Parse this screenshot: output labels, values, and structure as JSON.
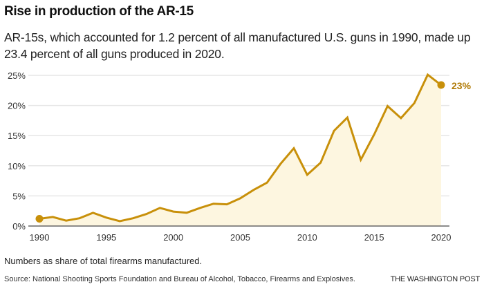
{
  "header": {
    "title": "Rise in production of the AR-15",
    "subtitle": "AR-15s, which accounted for 1.2 percent of all manufactured U.S. guns in 1990, made up 23.4 percent of all guns produced in 2020."
  },
  "footer": {
    "note": "Numbers as share of total firearms manufactured.",
    "source": "Source: National Shooting Sports Foundation and Bureau of Alcohol, Tobacco, Firearms and Explosives.",
    "credit": "THE WASHINGTON POST"
  },
  "chart_data": {
    "type": "area",
    "title": "Rise in production of the AR-15",
    "xlabel": "",
    "ylabel": "",
    "x": [
      1990,
      1991,
      1992,
      1993,
      1994,
      1995,
      1996,
      1997,
      1998,
      1999,
      2000,
      2001,
      2002,
      2003,
      2004,
      2005,
      2006,
      2007,
      2008,
      2009,
      2010,
      2011,
      2012,
      2013,
      2014,
      2015,
      2016,
      2017,
      2018,
      2019,
      2020
    ],
    "series": [
      {
        "name": "AR-15 share of total firearms manufactured (%)",
        "values": [
          1.2,
          1.5,
          0.9,
          1.3,
          2.2,
          1.4,
          0.8,
          1.3,
          2.0,
          3.0,
          2.4,
          2.2,
          3.0,
          3.7,
          3.6,
          4.6,
          6.0,
          7.2,
          10.3,
          12.9,
          8.5,
          10.5,
          15.8,
          18.0,
          11.0,
          15.2,
          19.9,
          17.9,
          20.4,
          25.1,
          23.4
        ]
      }
    ],
    "xlim": [
      1990,
      2020
    ],
    "ylim": [
      0,
      25
    ],
    "xticks": [
      1990,
      1995,
      2000,
      2005,
      2010,
      2015,
      2020
    ],
    "xtick_labels": [
      "1990",
      "1995",
      "2000",
      "2005",
      "2010",
      "2015",
      "2020"
    ],
    "yticks": [
      0,
      5,
      10,
      15,
      20,
      25
    ],
    "ytick_labels": [
      "0%",
      "5%",
      "10%",
      "15%",
      "20%",
      "25%"
    ],
    "grid": true,
    "legend": "none",
    "annotations": [
      {
        "x": 2020,
        "text": "23%"
      }
    ],
    "colors": {
      "line": "#c8900a",
      "fill": "#fdf6e0",
      "label": "#b07a05",
      "grid": "#e6e6e6",
      "axis": "#666666"
    }
  }
}
